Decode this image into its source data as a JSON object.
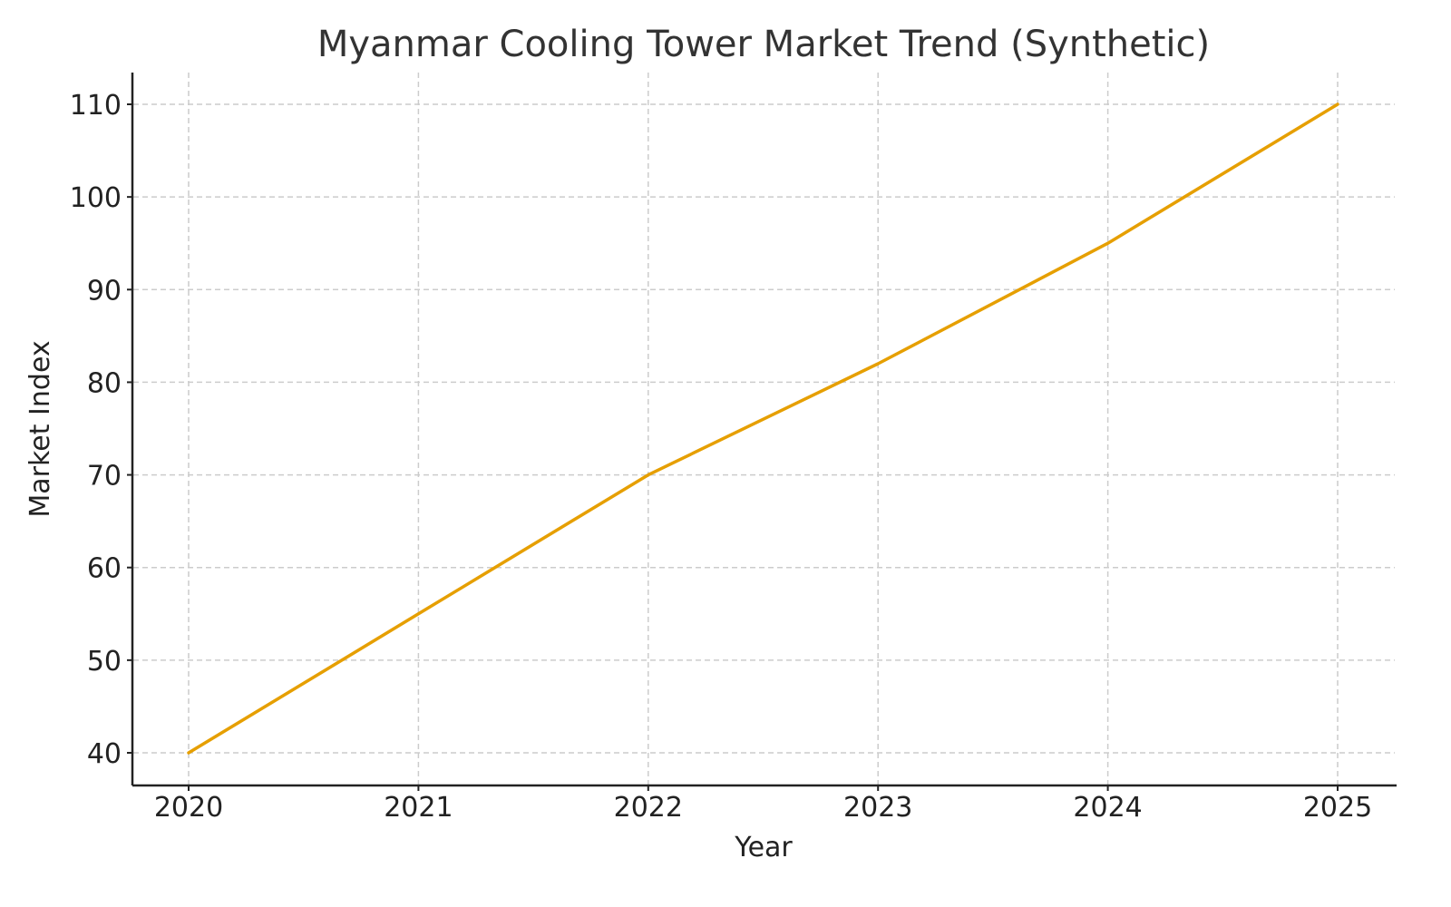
{
  "chart_data": {
    "type": "line",
    "title": "Myanmar Cooling Tower Market Trend (Synthetic)",
    "xlabel": "Year",
    "ylabel": "Market Index",
    "x": [
      2020,
      2021,
      2022,
      2023,
      2024,
      2025
    ],
    "series": [
      {
        "name": "Market Index",
        "values": [
          40,
          55,
          70,
          82,
          95,
          110
        ],
        "color": "#E69F00"
      }
    ],
    "xticks": [
      "2020",
      "2021",
      "2022",
      "2023",
      "2024",
      "2025"
    ],
    "yticks": [
      40,
      50,
      60,
      70,
      80,
      90,
      100,
      110
    ],
    "ylim": [
      36.5,
      113.5
    ],
    "grid": true,
    "legend": null
  },
  "colors": {
    "line": "#E69F00",
    "grid": "#cccccc",
    "axis": "#222222",
    "title": "#333333"
  }
}
